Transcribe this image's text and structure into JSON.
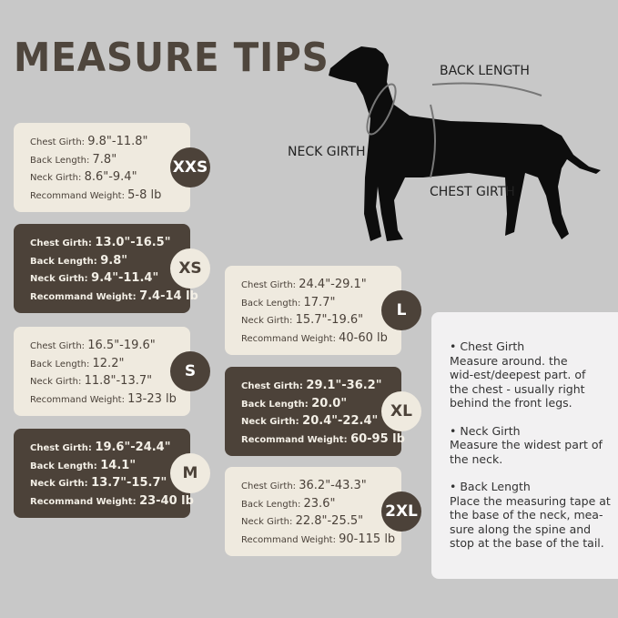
{
  "title": "MEASURE TIPS",
  "diagram": {
    "back_length": "BACK LENGTH",
    "neck_girth": "NECK GIRTH",
    "chest_girth": "CHEST GIRTH"
  },
  "labels": {
    "chest": "Chest Girth:",
    "back": "Back Length:",
    "neck": "Neck Girth:",
    "weight": "Recommand Weight:"
  },
  "sizes": [
    {
      "size": "XXS",
      "chest": "9.8\"-11.8\"",
      "back": "7.8\"",
      "neck": "8.6\"-9.4\"",
      "weight": "5-8 lb"
    },
    {
      "size": "XS",
      "chest": "13.0\"-16.5\"",
      "back": "9.8\"",
      "neck": "9.4\"-11.4\"",
      "weight": "7.4-14 lb"
    },
    {
      "size": "S",
      "chest": "16.5\"-19.6\"",
      "back": "12.2\"",
      "neck": "11.8\"-13.7\"",
      "weight": "13-23 lb"
    },
    {
      "size": "M",
      "chest": "19.6\"-24.4\"",
      "back": "14.1\"",
      "neck": "13.7\"-15.7\"",
      "weight": "23-40 lb"
    },
    {
      "size": "L",
      "chest": "24.4\"-29.1\"",
      "back": "17.7\"",
      "neck": "15.7\"-19.6\"",
      "weight": "40-60 lb"
    },
    {
      "size": "XL",
      "chest": "29.1\"-36.2\"",
      "back": "20.0\"",
      "neck": "20.4\"-22.4\"",
      "weight": "60-95 lb"
    },
    {
      "size": "2XL",
      "chest": "36.2\"-43.3\"",
      "back": "23.6\"",
      "neck": "22.8\"-25.5\"",
      "weight": "90-115 lb"
    }
  ],
  "tips": [
    {
      "heading": "• Chest Girth",
      "text": "Measure around. the wid-est/deepest part. of the chest - usually right behind the front legs."
    },
    {
      "heading": "• Neck Girth",
      "text": "Measure the widest part of the neck."
    },
    {
      "heading": "• Back Length",
      "text": "Place the measuring tape at the base of the neck, mea-sure along the spine and stop at the base of the tail."
    }
  ],
  "colors": {
    "background": "#c8c8c8",
    "light_card": "#efeadf",
    "dark_card": "#4c4239"
  }
}
